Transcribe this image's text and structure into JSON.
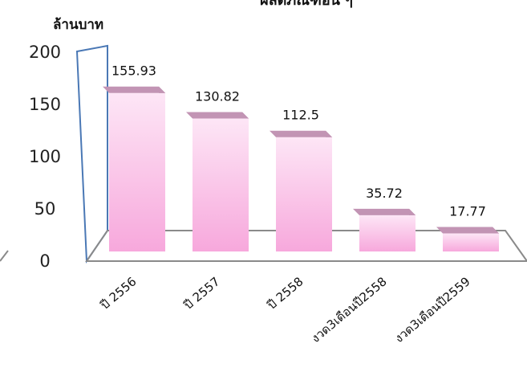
{
  "chart_data": {
    "type": "bar",
    "title": "ผลิตภัณฑ์อื่น ๆ",
    "ylabel": "ล้านบาท",
    "categories": [
      "ปี 2556",
      "ปี 2557",
      "ปี 2558",
      "งวด3เดือนปี2558",
      "งวด3เดือนปี2559"
    ],
    "values": [
      155.93,
      130.82,
      112.5,
      35.72,
      17.77
    ],
    "data_labels": [
      "155.93",
      "130.82",
      "112.5",
      "35.72",
      "17.77"
    ],
    "ylim": [
      0,
      200
    ],
    "yticks": [
      "0",
      "50",
      "100",
      "150",
      "200"
    ],
    "grid": false,
    "legend": "none",
    "colors": {
      "bar_front_top": "#fde6f6",
      "bar_front_bottom": "#f7a8dc",
      "bar_top": "#c294b4",
      "bar_side": "#a97596",
      "axis": "#8a8a8a",
      "wall_outline": "#4a78b5"
    }
  }
}
